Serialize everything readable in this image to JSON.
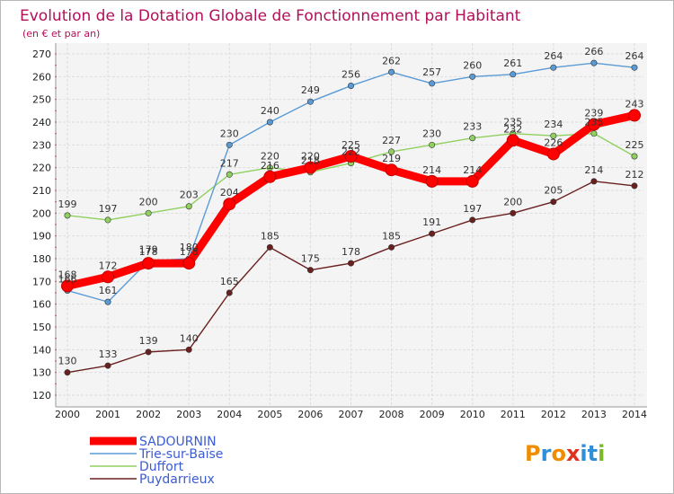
{
  "title": "Evolution de la Dotation Globale de Fonctionnement par Habitant",
  "subtitle": "(en € et par an)",
  "brand": {
    "letters": [
      "P",
      "r",
      "o",
      "x",
      "i",
      "t",
      "i"
    ],
    "colors": [
      "#f08c00",
      "#2f8fd8",
      "#f08c00",
      "#e03020",
      "#2f8fd8",
      "#2f8fd8",
      "#7cb82a"
    ]
  },
  "chart_data": {
    "type": "line",
    "title": "Evolution de la Dotation Globale de Fonctionnement par Habitant",
    "subtitle": "(en € et par an)",
    "xlabel": "",
    "ylabel": "",
    "x": [
      "2000",
      "2001",
      "2002",
      "2003",
      "2004",
      "2005",
      "2006",
      "2007",
      "2008",
      "2009",
      "2010",
      "2011",
      "2012",
      "2013",
      "2014"
    ],
    "ylim": [
      120,
      270
    ],
    "yticks": [
      120,
      130,
      140,
      150,
      160,
      170,
      180,
      190,
      200,
      210,
      220,
      230,
      240,
      250,
      260,
      270
    ],
    "grid": true,
    "legend_position": "bottom-left",
    "series": [
      {
        "name": "SADOURNIN",
        "color": "#ff0000",
        "values": [
          168,
          172,
          178,
          178,
          204,
          216,
          220,
          225,
          219,
          214,
          214,
          232,
          226,
          239,
          243
        ]
      },
      {
        "name": "Trie-sur-Baïse",
        "color": "#5b9bd5",
        "values": [
          166,
          161,
          179,
          180,
          230,
          240,
          249,
          256,
          262,
          257,
          260,
          261,
          264,
          266,
          264
        ]
      },
      {
        "name": "Duffort",
        "color": "#90d060",
        "values": [
          199,
          197,
          200,
          203,
          217,
          220,
          218,
          222,
          227,
          230,
          233,
          235,
          234,
          235,
          225
        ]
      },
      {
        "name": "Puydarrieux",
        "color": "#6b2020",
        "values": [
          130,
          133,
          139,
          140,
          165,
          185,
          175,
          178,
          185,
          191,
          197,
          200,
          205,
          214,
          212
        ]
      }
    ]
  }
}
